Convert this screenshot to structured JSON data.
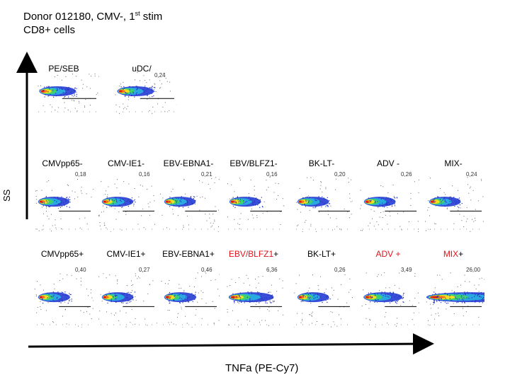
{
  "header": {
    "line1_prefix": "Donor 012180, CMV-, 1",
    "line1_sup": "st",
    "line1_suffix": " stim",
    "line2": "CD8+ cells"
  },
  "axes": {
    "y_label": "SS",
    "x_label": "TNFa  (PE-Cy7)"
  },
  "controls": {
    "labels": [
      "PE/SEB",
      "uDC/"
    ],
    "values": [
      "",
      "0,24"
    ]
  },
  "row_minus": {
    "labels": [
      "CMVpp65-",
      "CMV-IE1-",
      "EBV-EBNA1-",
      "EBV/BLFZ1-",
      "BK-LT-",
      "ADV -",
      "MIX-"
    ],
    "values": [
      "0,18",
      "0,16",
      "0,21",
      "0,16",
      "0,20",
      "0,26",
      "0,24"
    ]
  },
  "row_plus": {
    "labels": [
      "CMVpp65+",
      "CMV-IE1+",
      "EBV-EBNA1+",
      "EBV/BLFZ1+",
      "BK-LT+",
      "ADV +",
      "MIX+"
    ],
    "values": [
      "0,40",
      "0,27",
      "0,46",
      "6,36",
      "0,26",
      "3,49",
      "26,00"
    ]
  },
  "colors": {
    "highlight": "#e0141c",
    "axis": "#000000"
  }
}
